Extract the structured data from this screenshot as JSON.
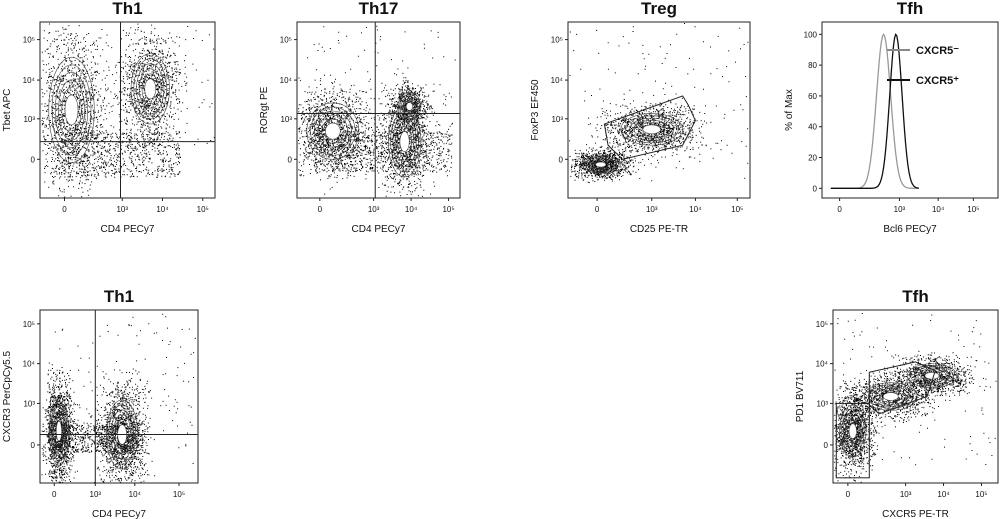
{
  "panels": [
    {
      "title": "Th1",
      "x_label": "CD4 PECy7",
      "y_label": "Tbet APC",
      "x_ticks": [
        "0",
        "10³",
        "10⁴",
        "10⁵"
      ],
      "y_ticks": [
        "10⁵",
        "10⁴",
        "10³",
        "0"
      ]
    },
    {
      "title": "Th17",
      "x_label": "CD4 PECy7",
      "y_label": "RORgt PE",
      "x_ticks": [
        "0",
        "10³",
        "10⁴",
        "10⁵"
      ],
      "y_ticks": [
        "10⁵",
        "10⁴",
        "10³",
        "0"
      ]
    },
    {
      "title": "Treg",
      "x_label": "CD25 PE-TR",
      "y_label": "FoxP3 EF450",
      "x_ticks": [
        "0",
        "10³",
        "10⁴",
        "10⁵"
      ],
      "y_ticks": [
        "10⁵",
        "10⁴",
        "10³",
        "0"
      ]
    },
    {
      "title": "Tfh",
      "x_label": "Bcl6 PECy7",
      "y_label": "% of Max",
      "x_ticks": [
        "0",
        "10³",
        "10⁴",
        "10⁵"
      ],
      "y_ticks": [
        100,
        80,
        60,
        40,
        20,
        0
      ],
      "legend": [
        "CXCR5⁻",
        "CXCR5⁺"
      ]
    },
    {
      "title": "Th1",
      "x_label": "CD4 PECy7",
      "y_label": "CXCR3 PerCpCy5.5",
      "x_ticks": [
        "0",
        "10³",
        "10⁴",
        "10⁵"
      ],
      "y_ticks": [
        "10⁵",
        "10⁴",
        "10³",
        "0"
      ]
    },
    {
      "title": "Tfh",
      "x_label": "CXCR5 PE-TR",
      "y_label": "PD1 BV711",
      "x_ticks": [
        "0",
        "10³",
        "10⁴",
        "10⁵"
      ],
      "y_ticks": [
        "10⁵",
        "10⁴",
        "10³",
        "0"
      ]
    }
  ]
}
